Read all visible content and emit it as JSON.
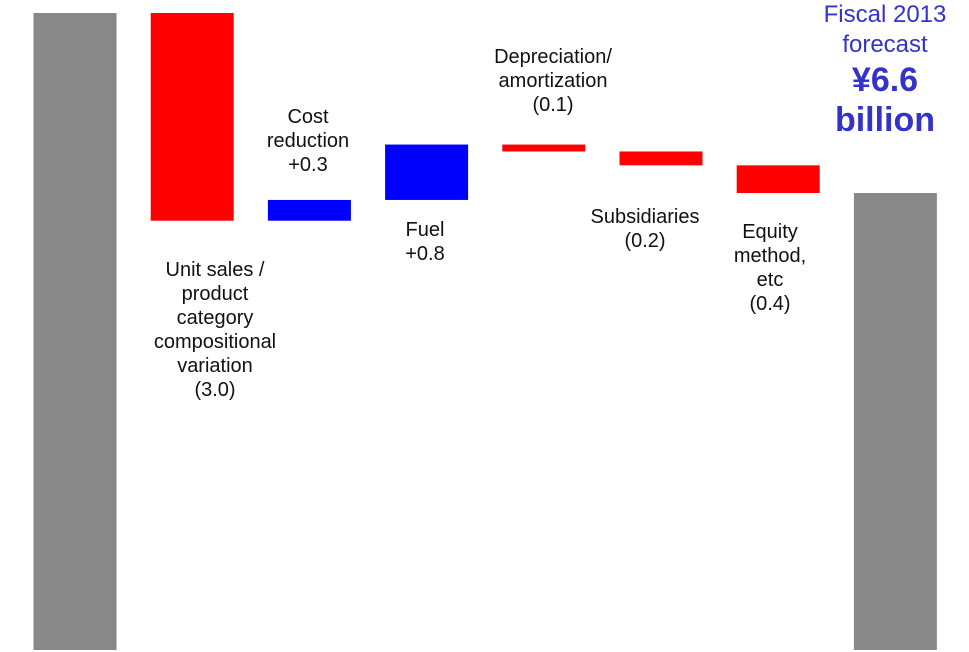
{
  "chart_data": {
    "type": "waterfall",
    "categories": [
      null,
      "Unit sales / product category compositional variation",
      "Cost reduction",
      "Fuel",
      "Depreciation/ amortization",
      "Subsidiaries",
      "Equity method, etc",
      "Fiscal 2013 forecast"
    ],
    "measures": [
      "total",
      "relative",
      "relative",
      "relative",
      "relative",
      "relative",
      "relative",
      "total"
    ],
    "values": [
      9.2,
      -3.0,
      0.3,
      0.8,
      -0.1,
      -0.2,
      -0.4,
      6.6
    ],
    "value_labels": [
      null,
      "(3.0)",
      "+0.3",
      "+0.8",
      "(0.1)",
      "(0.2)",
      "(0.4)",
      "¥6.6 billion"
    ],
    "colors": {
      "total": "#888888",
      "increase": "#0000ff",
      "decrease": "#ff0000"
    }
  }
}
